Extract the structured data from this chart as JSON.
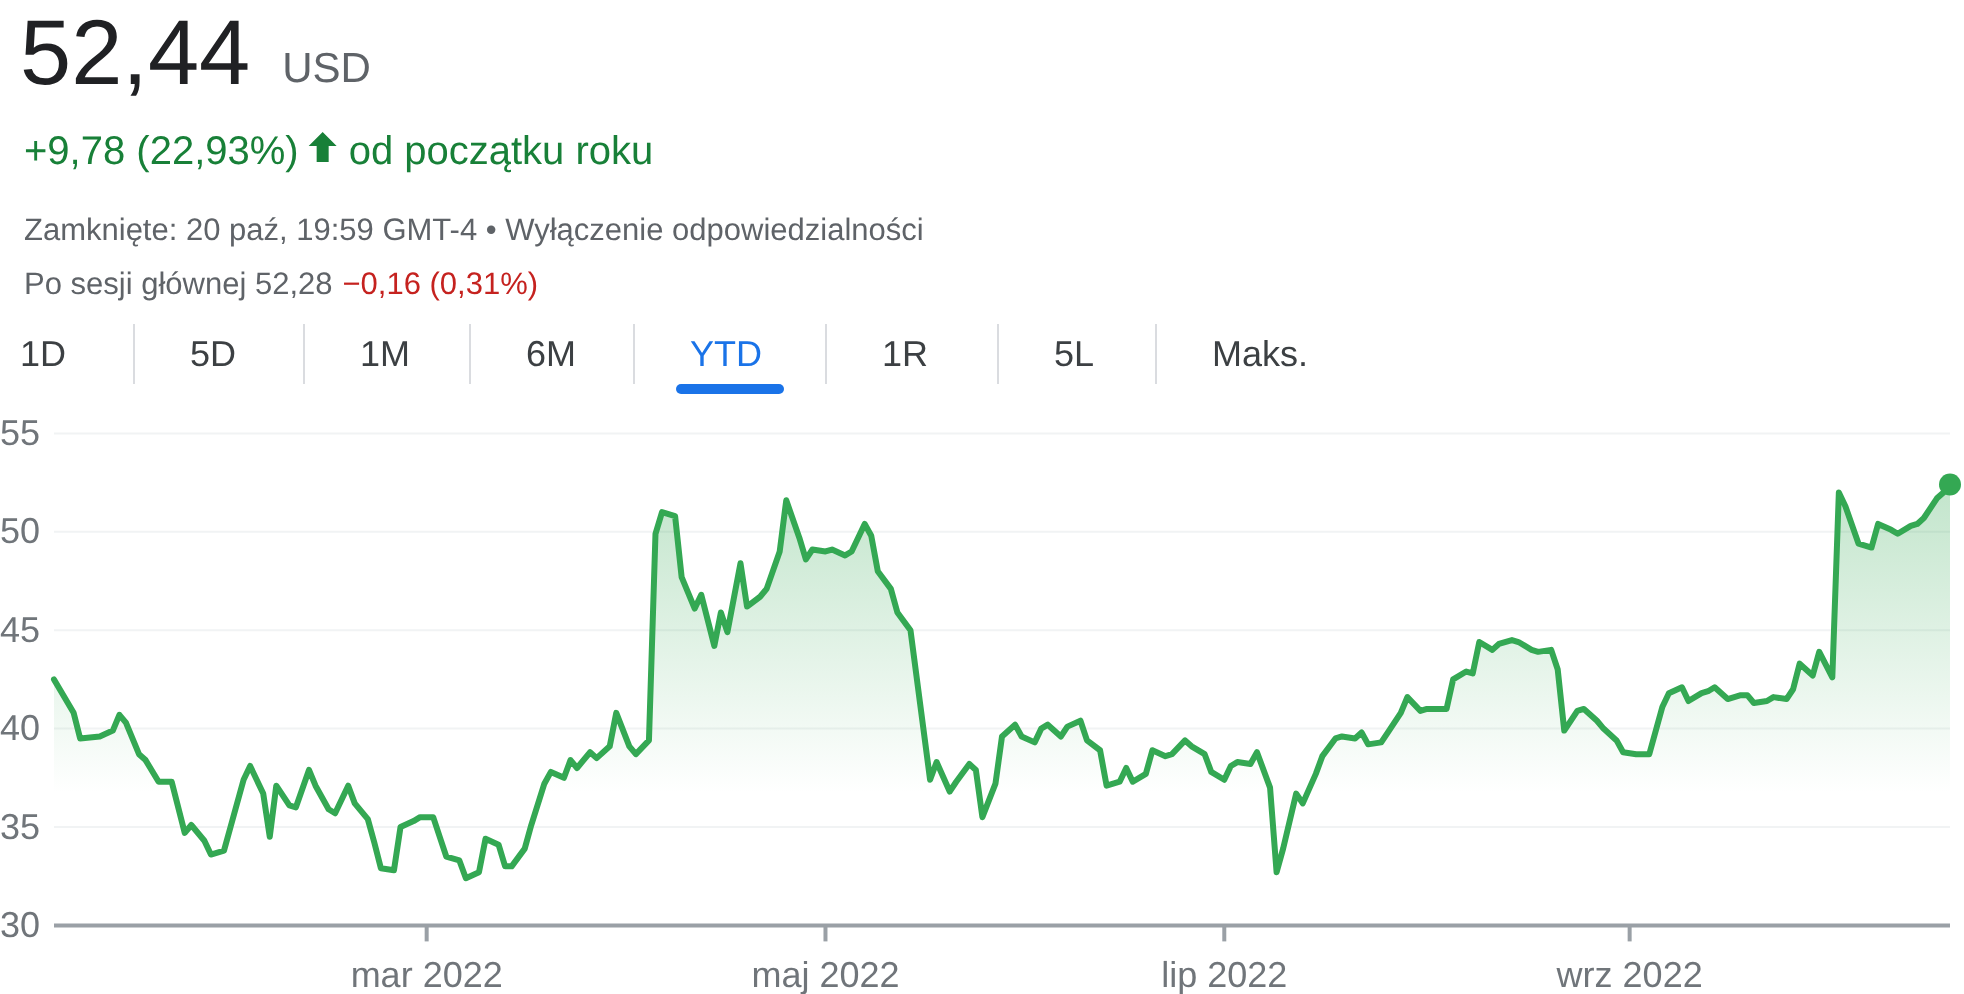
{
  "chart_data": {
    "type": "area",
    "title": "52,44",
    "annotations": [
      "USD",
      "+9,78 (22,93%)",
      "od początku roku",
      "Zamknięte: 20 paź, 19:59 GMT-4 • Wyłączenie odpowiedzialności",
      "Po sesji głównej 52,28",
      "−0,16 (0,31%)",
      "1D",
      "5D",
      "1M",
      "6M",
      "YTD",
      "1R",
      "5L",
      "Maks."
    ],
    "x": [
      "2022-01-03",
      "2022-01-06",
      "2022-01-07",
      "2022-01-10",
      "2022-01-12",
      "2022-01-13",
      "2022-01-14",
      "2022-01-16",
      "2022-01-17",
      "2022-01-19",
      "2022-01-21",
      "2022-01-23",
      "2022-01-24",
      "2022-01-26",
      "2022-01-27",
      "2022-01-29",
      "2022-01-30",
      "2022-02-01",
      "2022-02-02",
      "2022-02-04",
      "2022-02-05",
      "2022-02-06",
      "2022-02-08",
      "2022-02-09",
      "2022-02-11",
      "2022-02-12",
      "2022-02-14",
      "2022-02-15",
      "2022-02-17",
      "2022-02-18",
      "2022-02-20",
      "2022-02-21",
      "2022-02-22",
      "2022-02-24",
      "2022-02-25",
      "2022-02-27",
      "2022-02-28",
      "2022-03-02",
      "2022-03-03",
      "2022-03-04",
      "2022-03-06",
      "2022-03-07",
      "2022-03-09",
      "2022-03-10",
      "2022-03-12",
      "2022-03-13",
      "2022-03-14",
      "2022-03-16",
      "2022-03-17",
      "2022-03-19",
      "2022-03-20",
      "2022-03-22",
      "2022-03-23",
      "2022-03-24",
      "2022-03-26",
      "2022-03-27",
      "2022-03-29",
      "2022-03-30",
      "2022-04-01",
      "2022-04-02",
      "2022-04-04",
      "2022-04-05",
      "2022-04-06",
      "2022-04-08",
      "2022-04-09",
      "2022-04-11",
      "2022-04-12",
      "2022-04-14",
      "2022-04-15",
      "2022-04-16",
      "2022-04-18",
      "2022-04-19",
      "2022-04-21",
      "2022-04-22",
      "2022-04-24",
      "2022-04-25",
      "2022-04-27",
      "2022-04-28",
      "2022-04-29",
      "2022-05-01",
      "2022-05-02",
      "2022-05-04",
      "2022-05-05",
      "2022-05-07",
      "2022-05-08",
      "2022-05-09",
      "2022-05-11",
      "2022-05-12",
      "2022-05-14",
      "2022-05-17",
      "2022-05-18",
      "2022-05-20",
      "2022-05-21",
      "2022-05-23",
      "2022-05-24",
      "2022-05-25",
      "2022-05-27",
      "2022-05-28",
      "2022-05-30",
      "2022-05-31",
      "2022-06-02",
      "2022-06-03",
      "2022-06-04",
      "2022-06-06",
      "2022-06-07",
      "2022-06-09",
      "2022-06-10",
      "2022-06-12",
      "2022-06-13",
      "2022-06-15",
      "2022-06-16",
      "2022-06-17",
      "2022-06-19",
      "2022-06-20",
      "2022-06-22",
      "2022-06-23",
      "2022-06-25",
      "2022-06-26",
      "2022-06-28",
      "2022-06-29",
      "2022-07-01",
      "2022-07-02",
      "2022-07-03",
      "2022-07-05",
      "2022-07-06",
      "2022-07-08",
      "2022-07-09",
      "2022-07-10",
      "2022-07-12",
      "2022-07-13",
      "2022-07-15",
      "2022-07-16",
      "2022-07-18",
      "2022-07-19",
      "2022-07-21",
      "2022-07-22",
      "2022-07-23",
      "2022-07-25",
      "2022-07-26",
      "2022-07-28",
      "2022-07-29",
      "2022-07-31",
      "2022-08-01",
      "2022-08-03",
      "2022-08-04",
      "2022-08-05",
      "2022-08-07",
      "2022-08-08",
      "2022-08-09",
      "2022-08-11",
      "2022-08-12",
      "2022-08-14",
      "2022-08-15",
      "2022-08-17",
      "2022-08-18",
      "2022-08-20",
      "2022-08-21",
      "2022-08-22",
      "2022-08-24",
      "2022-08-25",
      "2022-08-27",
      "2022-08-28",
      "2022-08-30",
      "2022-08-31",
      "2022-09-02",
      "2022-09-04",
      "2022-09-06",
      "2022-09-07",
      "2022-09-09",
      "2022-09-10",
      "2022-09-12",
      "2022-09-13",
      "2022-09-14",
      "2022-09-16",
      "2022-09-18",
      "2022-09-19",
      "2022-09-20",
      "2022-09-22",
      "2022-09-23",
      "2022-09-25",
      "2022-09-26",
      "2022-09-27",
      "2022-09-29",
      "2022-09-30",
      "2022-10-02",
      "2022-10-03",
      "2022-10-04",
      "2022-10-06",
      "2022-10-08",
      "2022-10-09",
      "2022-10-11",
      "2022-10-12",
      "2022-10-14",
      "2022-10-15",
      "2022-10-16",
      "2022-10-18",
      "2022-10-19",
      "2022-10-20"
    ],
    "values": [
      42.5,
      40.8,
      39.5,
      39.6,
      39.9,
      40.7,
      40.3,
      38.7,
      38.4,
      37.3,
      37.3,
      34.7,
      35.1,
      34.3,
      33.6,
      33.8,
      35.0,
      37.4,
      38.1,
      36.7,
      34.5,
      37.1,
      36.1,
      36.0,
      37.9,
      37.1,
      35.9,
      35.7,
      37.1,
      36.2,
      35.4,
      34.2,
      32.9,
      32.8,
      35.0,
      35.3,
      35.5,
      35.5,
      34.5,
      33.5,
      33.3,
      32.4,
      32.7,
      34.4,
      34.1,
      33.0,
      33.0,
      33.9,
      35.1,
      37.2,
      37.8,
      37.5,
      38.4,
      38.0,
      38.8,
      38.5,
      39.1,
      40.8,
      39.1,
      38.7,
      39.4,
      49.9,
      51.0,
      50.8,
      47.7,
      46.1,
      46.8,
      44.2,
      45.9,
      44.9,
      48.4,
      46.2,
      46.7,
      47.1,
      49.0,
      51.6,
      49.7,
      48.6,
      49.1,
      49.0,
      49.1,
      48.8,
      49.0,
      50.4,
      49.8,
      48.0,
      47.1,
      45.9,
      45.0,
      37.4,
      38.3,
      36.8,
      37.3,
      38.2,
      37.9,
      35.5,
      37.2,
      39.6,
      40.2,
      39.6,
      39.3,
      40.0,
      40.2,
      39.6,
      40.1,
      40.4,
      39.4,
      38.9,
      37.1,
      37.3,
      38.0,
      37.3,
      37.7,
      38.9,
      38.6,
      38.7,
      39.4,
      39.1,
      38.7,
      37.8,
      37.4,
      38.1,
      38.3,
      38.2,
      38.8,
      37.0,
      32.7,
      33.9,
      36.7,
      36.2,
      37.7,
      38.6,
      39.5,
      39.6,
      39.5,
      39.8,
      39.2,
      39.3,
      39.8,
      40.8,
      41.6,
      40.9,
      41.0,
      41.0,
      41.0,
      42.5,
      42.9,
      42.8,
      44.4,
      44.0,
      44.3,
      44.5,
      44.4,
      44.0,
      43.9,
      44.0,
      43.0,
      39.9,
      40.9,
      41.0,
      40.4,
      40.0,
      39.4,
      38.8,
      38.7,
      38.7,
      41.1,
      41.8,
      42.1,
      41.4,
      41.8,
      41.9,
      42.1,
      41.5,
      41.7,
      41.7,
      41.3,
      41.4,
      41.6,
      41.5,
      42.0,
      43.3,
      42.7,
      43.9,
      42.6,
      52.0,
      51.3,
      49.4,
      49.2,
      50.4,
      50.1,
      49.9,
      50.3,
      50.4,
      50.7,
      51.7,
      52.0,
      52.4
    ],
    "color": "#34a853",
    "xlim": [
      "2022-01-03",
      "2022-10-20"
    ],
    "xticks": [
      {
        "value": "2022-03-01",
        "label": "mar 2022"
      },
      {
        "value": "2022-05-01",
        "label": "maj 2022"
      },
      {
        "value": "2022-07-01",
        "label": "lip 2022"
      },
      {
        "value": "2022-09-01",
        "label": "wrz 2022"
      }
    ],
    "ylim": [
      30,
      55
    ],
    "yticks": [
      30,
      35,
      40,
      45,
      50,
      55
    ],
    "grid": "y"
  }
}
